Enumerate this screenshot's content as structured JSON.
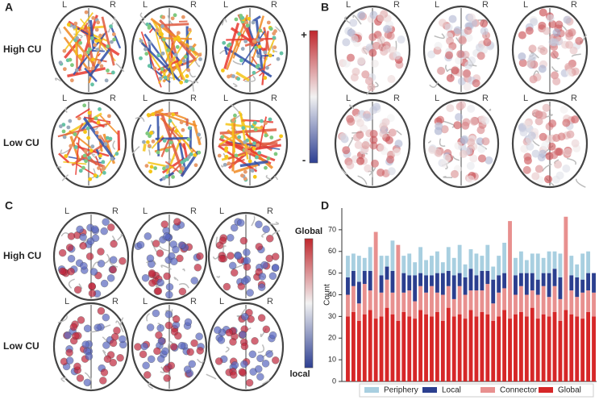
{
  "figure": {
    "panels": [
      "A",
      "B",
      "C",
      "D"
    ],
    "row_labels_a": [
      "High CU",
      "Low CU"
    ],
    "row_labels_c": [
      "High CU",
      "Low CU"
    ],
    "hemispheres": [
      "L",
      "R"
    ],
    "colorbar_a": [
      "+",
      "-"
    ],
    "colorbar_c": [
      "Global",
      "local"
    ]
  },
  "chart_data": {
    "type": "stacked_bar",
    "ylabel": "Count",
    "ylim": [
      0,
      80
    ],
    "yticks": [
      0,
      10,
      20,
      30,
      40,
      50,
      60,
      70
    ],
    "categories": [
      null,
      null,
      null,
      null,
      null,
      null,
      null,
      null,
      null,
      null,
      null,
      null,
      null,
      null,
      null,
      null,
      null,
      null,
      null,
      null,
      null,
      null,
      null,
      null,
      null,
      null,
      null,
      null,
      null,
      null,
      null,
      null,
      null,
      null,
      null,
      null,
      null,
      null,
      null,
      null,
      null,
      null,
      null,
      null,
      null
    ],
    "series": [
      {
        "name": "Global",
        "color": "#d62728",
        "values": [
          30,
          32,
          28,
          31,
          33,
          29,
          30,
          34,
          31,
          28,
          32,
          30,
          29,
          33,
          31,
          30,
          32,
          28,
          34,
          30,
          31,
          29,
          33,
          30,
          32,
          31,
          28,
          30,
          33,
          29,
          31,
          32,
          30,
          34,
          29,
          31,
          30,
          32,
          28,
          33,
          31,
          30,
          29,
          32,
          30
        ]
      },
      {
        "name": "Connector",
        "color": "#e8908f",
        "values": [
          10,
          12,
          8,
          14,
          9,
          40,
          11,
          13,
          10,
          35,
          9,
          12,
          8,
          11,
          10,
          14,
          9,
          12,
          10,
          8,
          13,
          11,
          9,
          12,
          10,
          14,
          8,
          11,
          10,
          45,
          9,
          12,
          10,
          8,
          11,
          13,
          9,
          12,
          10,
          43,
          11,
          9,
          12,
          10,
          11
        ]
      },
      {
        "name": "Local",
        "color": "#2b3f8f",
        "values": [
          8,
          7,
          10,
          6,
          9,
          0,
          8,
          6,
          10,
          0,
          9,
          7,
          12,
          6,
          8,
          5,
          9,
          10,
          7,
          11,
          6,
          8,
          10,
          7,
          9,
          6,
          11,
          8,
          7,
          0,
          9,
          6,
          10,
          8,
          7,
          6,
          11,
          8,
          10,
          0,
          7,
          9,
          6,
          8,
          9
        ]
      },
      {
        "name": "Periphery",
        "color": "#a8cfe0",
        "values": [
          10,
          8,
          12,
          6,
          11,
          0,
          9,
          5,
          14,
          0,
          8,
          10,
          6,
          12,
          7,
          9,
          10,
          5,
          11,
          8,
          13,
          6,
          9,
          10,
          7,
          12,
          6,
          9,
          14,
          0,
          8,
          10,
          6,
          9,
          12,
          7,
          10,
          8,
          11,
          0,
          9,
          6,
          12,
          10,
          0
        ]
      }
    ],
    "legend_order": [
      3,
      2,
      1,
      0
    ]
  }
}
